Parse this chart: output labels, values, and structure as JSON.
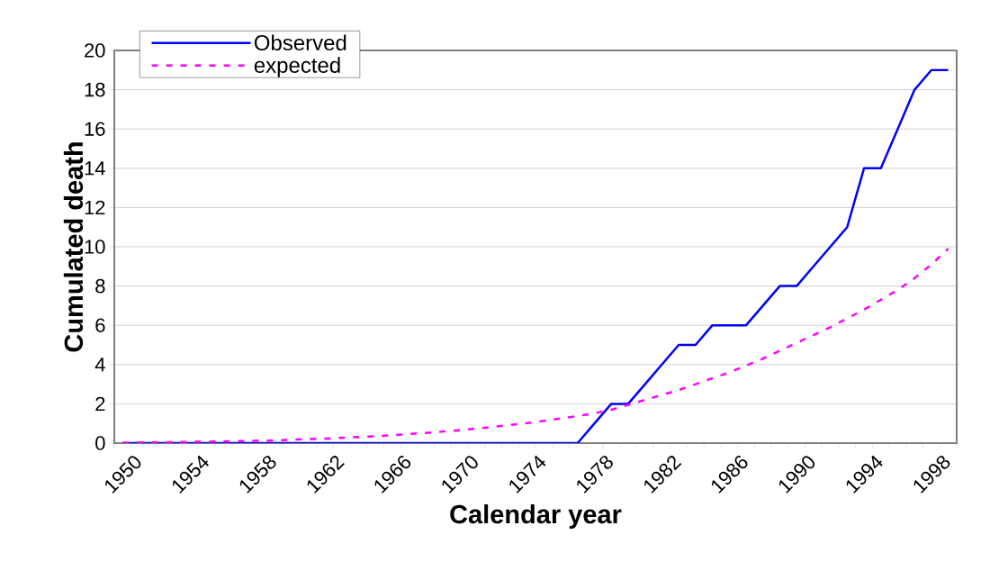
{
  "chart_data": {
    "type": "line",
    "xlabel": "Calendar year",
    "ylabel": "Cumulated death",
    "categories": [
      "1950",
      null,
      null,
      null,
      "1954",
      null,
      null,
      null,
      "1958",
      null,
      null,
      null,
      "1962",
      null,
      null,
      null,
      "1966",
      null,
      null,
      null,
      "1970",
      null,
      null,
      null,
      "1974",
      null,
      null,
      null,
      "1978",
      null,
      null,
      null,
      "1982",
      null,
      null,
      null,
      "1986",
      null,
      null,
      null,
      "1990",
      null,
      null,
      null,
      "1994",
      null,
      null,
      null,
      "1998",
      null
    ],
    "series": [
      {
        "name": "Observed",
        "color": "#0000ff",
        "line_style": "solid",
        "values": [
          0,
          0,
          0,
          0,
          0,
          0,
          0,
          0,
          0,
          0,
          0,
          0,
          0,
          0,
          0,
          0,
          0,
          0,
          0,
          0,
          0,
          0,
          0,
          0,
          0,
          0,
          0,
          0,
          1,
          2,
          2,
          3,
          4,
          5,
          5,
          6,
          6,
          6,
          7,
          8,
          8,
          9,
          10,
          11,
          14,
          14,
          16,
          18,
          19,
          19
        ]
      },
      {
        "name": "expected",
        "color": "#ff00ff",
        "line_style": "dashed",
        "values": [
          0.02,
          0.03,
          0.04,
          0.05,
          0.06,
          0.07,
          0.08,
          0.1,
          0.12,
          0.14,
          0.17,
          0.2,
          0.23,
          0.27,
          0.31,
          0.35,
          0.4,
          0.46,
          0.52,
          0.59,
          0.66,
          0.74,
          0.83,
          0.92,
          1.02,
          1.13,
          1.25,
          1.38,
          1.52,
          1.7,
          1.95,
          2.2,
          2.45,
          2.7,
          3.0,
          3.3,
          3.6,
          3.95,
          4.3,
          4.7,
          5.1,
          5.5,
          5.9,
          6.35,
          6.8,
          7.3,
          7.8,
          8.4,
          9.1,
          9.9
        ]
      }
    ],
    "ylim": [
      0,
      20
    ],
    "yticks": [
      0,
      2,
      4,
      6,
      8,
      10,
      12,
      14,
      16,
      18,
      20
    ],
    "grid": "y",
    "legend": "top left"
  }
}
